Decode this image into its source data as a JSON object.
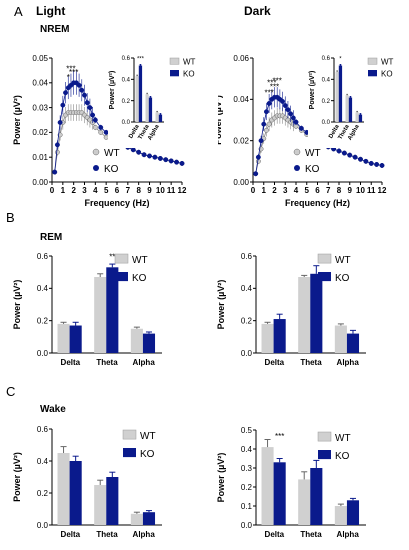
{
  "panels": {
    "A": {
      "letter": "A",
      "light": "Light",
      "dark": "Dark",
      "state": "NREM"
    },
    "B": {
      "letter": "B",
      "state": "REM"
    },
    "C": {
      "letter": "C",
      "state": "Wake"
    }
  },
  "colors": {
    "wt": "#d0d0d0",
    "ko": "#0a1a8c",
    "wt_marker": "#cccccc",
    "ko_marker": "#0a1a8c"
  },
  "legend": {
    "wt": "WT",
    "ko": "KO"
  },
  "chart_data": [
    {
      "id": "nrem-light-spectrum",
      "type": "line",
      "xlabel": "Frequency (Hz)",
      "ylabel": "Power (µV²)",
      "xlim": [
        0,
        12
      ],
      "ylim": [
        0,
        0.05
      ],
      "xticks": [
        0,
        1,
        2,
        3,
        4,
        5,
        6,
        7,
        8,
        9,
        10,
        11,
        12
      ],
      "yticks": [
        "0.00",
        "0.01",
        "0.02",
        "0.03",
        "0.04",
        "0.05"
      ],
      "x": [
        0.25,
        0.5,
        0.75,
        1,
        1.25,
        1.5,
        1.75,
        2,
        2.25,
        2.5,
        2.75,
        3,
        3.25,
        3.5,
        3.75,
        4,
        4.5,
        5,
        5.5,
        6,
        6.5,
        7,
        7.5,
        8,
        8.5,
        9,
        9.5,
        10,
        10.5,
        11,
        11.5,
        12
      ],
      "series": [
        {
          "name": "WT",
          "values": [
            0.004,
            0.012,
            0.019,
            0.024,
            0.027,
            0.028,
            0.028,
            0.028,
            0.028,
            0.028,
            0.028,
            0.027,
            0.026,
            0.025,
            0.024,
            0.022,
            0.02,
            0.018,
            0.017,
            0.016,
            0.015,
            0.014,
            0.013,
            0.012,
            0.011,
            0.0105,
            0.01,
            0.0095,
            0.009,
            0.0085,
            0.008,
            0.0075
          ]
        },
        {
          "name": "KO",
          "values": [
            0.004,
            0.015,
            0.024,
            0.031,
            0.036,
            0.038,
            0.039,
            0.04,
            0.04,
            0.039,
            0.037,
            0.035,
            0.032,
            0.03,
            0.027,
            0.025,
            0.022,
            0.02,
            0.018,
            0.016,
            0.015,
            0.014,
            0.013,
            0.012,
            0.011,
            0.0105,
            0.01,
            0.0095,
            0.009,
            0.0085,
            0.008,
            0.0075
          ]
        }
      ],
      "annotations": [
        "*",
        "***",
        "***"
      ]
    },
    {
      "id": "nrem-dark-spectrum",
      "type": "line",
      "xlabel": "Frequency (Hz)",
      "ylabel": "Power (µV²)",
      "xlim": [
        0,
        12
      ],
      "ylim": [
        0,
        0.06
      ],
      "xticks": [
        0,
        1,
        2,
        3,
        4,
        5,
        6,
        7,
        8,
        9,
        10,
        11,
        12
      ],
      "yticks": [
        "0.00",
        "0.02",
        "0.04",
        "0.06"
      ],
      "x": [
        0.25,
        0.5,
        0.75,
        1,
        1.25,
        1.5,
        1.75,
        2,
        2.25,
        2.5,
        2.75,
        3,
        3.25,
        3.5,
        3.75,
        4,
        4.5,
        5,
        5.5,
        6,
        6.5,
        7,
        7.5,
        8,
        8.5,
        9,
        9.5,
        10,
        10.5,
        11,
        11.5,
        12
      ],
      "series": [
        {
          "name": "WT",
          "values": [
            0.004,
            0.01,
            0.016,
            0.021,
            0.025,
            0.028,
            0.03,
            0.031,
            0.032,
            0.032,
            0.032,
            0.031,
            0.03,
            0.029,
            0.028,
            0.027,
            0.025,
            0.023,
            0.021,
            0.019,
            0.018,
            0.017,
            0.016,
            0.015,
            0.014,
            0.013,
            0.012,
            0.011,
            0.01,
            0.009,
            0.0085,
            0.008
          ]
        },
        {
          "name": "KO",
          "values": [
            0.004,
            0.012,
            0.02,
            0.028,
            0.034,
            0.038,
            0.04,
            0.041,
            0.041,
            0.04,
            0.039,
            0.037,
            0.035,
            0.033,
            0.031,
            0.029,
            0.026,
            0.024,
            0.022,
            0.02,
            0.018,
            0.017,
            0.016,
            0.015,
            0.014,
            0.013,
            0.012,
            0.011,
            0.01,
            0.009,
            0.0085,
            0.008
          ]
        }
      ],
      "annotations": [
        "***",
        "***",
        "***",
        "***"
      ]
    },
    {
      "id": "nrem-light-bands",
      "type": "bar",
      "ylabel": "Power (µV²)",
      "categories": [
        "Delta",
        "Theta",
        "Alpha"
      ],
      "ylim": [
        0,
        0.6
      ],
      "yticks": [
        "0.0",
        "0.2",
        "0.4",
        "0.6"
      ],
      "series": [
        {
          "name": "WT",
          "values": [
            0.43,
            0.26,
            0.09
          ]
        },
        {
          "name": "KO",
          "values": [
            0.53,
            0.23,
            0.07
          ]
        }
      ],
      "sig": [
        {
          "category": "Delta",
          "label": "***"
        }
      ]
    },
    {
      "id": "nrem-dark-bands",
      "type": "bar",
      "ylabel": "Power (µV²)",
      "categories": [
        "Delta",
        "Theta",
        "Alpha"
      ],
      "ylim": [
        0,
        0.6
      ],
      "yticks": [
        "0.0",
        "0.2",
        "0.4",
        "0.6"
      ],
      "series": [
        {
          "name": "WT",
          "values": [
            0.47,
            0.25,
            0.09
          ]
        },
        {
          "name": "KO",
          "values": [
            0.53,
            0.23,
            0.07
          ]
        }
      ],
      "sig": [
        {
          "category": "Delta",
          "label": "*"
        }
      ]
    },
    {
      "id": "rem-light",
      "type": "bar",
      "ylabel": "Power (µV²)",
      "categories": [
        "Delta",
        "Theta",
        "Alpha"
      ],
      "ylim": [
        0,
        0.6
      ],
      "yticks": [
        "0.0",
        "0.2",
        "0.4",
        "0.6"
      ],
      "series": [
        {
          "name": "WT",
          "values": [
            0.18,
            0.47,
            0.15
          ]
        },
        {
          "name": "KO",
          "values": [
            0.17,
            0.53,
            0.12
          ]
        }
      ],
      "errors": [
        {
          "name": "WT",
          "values": [
            0.01,
            0.02,
            0.01
          ]
        },
        {
          "name": "KO",
          "values": [
            0.02,
            0.02,
            0.01
          ]
        }
      ],
      "sig": [
        {
          "category": "Theta",
          "label": "**"
        }
      ]
    },
    {
      "id": "rem-dark",
      "type": "bar",
      "ylabel": "Power (µV²)",
      "categories": [
        "Delta",
        "Theta",
        "Alpha"
      ],
      "ylim": [
        0,
        0.6
      ],
      "yticks": [
        "0.0",
        "0.2",
        "0.4",
        "0.6"
      ],
      "series": [
        {
          "name": "WT",
          "values": [
            0.18,
            0.47,
            0.17
          ]
        },
        {
          "name": "KO",
          "values": [
            0.21,
            0.49,
            0.12
          ]
        }
      ],
      "errors": [
        {
          "name": "WT",
          "values": [
            0.01,
            0.01,
            0.01
          ]
        },
        {
          "name": "KO",
          "values": [
            0.03,
            0.05,
            0.02
          ]
        }
      ],
      "sig": []
    },
    {
      "id": "wake-light",
      "type": "bar",
      "ylabel": "Power (µV²)",
      "categories": [
        "Delta",
        "Theta",
        "Alpha"
      ],
      "ylim": [
        0,
        0.6
      ],
      "yticks": [
        "0.0",
        "0.2",
        "0.4",
        "0.6"
      ],
      "series": [
        {
          "name": "WT",
          "values": [
            0.45,
            0.25,
            0.07
          ]
        },
        {
          "name": "KO",
          "values": [
            0.4,
            0.3,
            0.08
          ]
        }
      ],
      "errors": [
        {
          "name": "WT",
          "values": [
            0.04,
            0.03,
            0.01
          ]
        },
        {
          "name": "KO",
          "values": [
            0.03,
            0.03,
            0.01
          ]
        }
      ],
      "sig": []
    },
    {
      "id": "wake-dark",
      "type": "bar",
      "ylabel": "Power (µV²)",
      "categories": [
        "Delta",
        "Theta",
        "Alpha"
      ],
      "ylim": [
        0,
        0.5
      ],
      "yticks": [
        "0.0",
        "0.1",
        "0.2",
        "0.3",
        "0.4",
        "0.5"
      ],
      "series": [
        {
          "name": "WT",
          "values": [
            0.41,
            0.24,
            0.1
          ]
        },
        {
          "name": "KO",
          "values": [
            0.33,
            0.3,
            0.13
          ]
        }
      ],
      "errors": [
        {
          "name": "WT",
          "values": [
            0.04,
            0.04,
            0.01
          ]
        },
        {
          "name": "KO",
          "values": [
            0.02,
            0.04,
            0.01
          ]
        }
      ],
      "sig": [
        {
          "category": "Delta",
          "label": "***"
        }
      ]
    }
  ]
}
